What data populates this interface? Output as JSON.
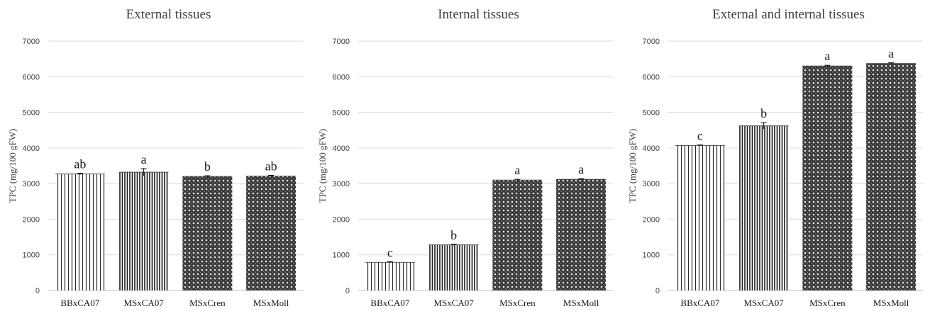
{
  "chart_data": [
    {
      "type": "bar",
      "title": "External tissues",
      "ylabel": "TPC (mg/100 gFW)",
      "xlabel": "",
      "ylim": [
        0,
        7000
      ],
      "yticks": [
        0,
        1000,
        2000,
        3000,
        4000,
        5000,
        6000,
        7000
      ],
      "grid": true,
      "categories": [
        "BBxCA07",
        "MSxCA07",
        "MSxCren",
        "MSxMoll"
      ],
      "values": [
        3270,
        3320,
        3200,
        3210
      ],
      "errors": [
        20,
        100,
        20,
        20
      ],
      "letters": [
        "ab",
        "a",
        "b",
        "ab"
      ],
      "patterns": [
        "vlines-light",
        "vlines-dense",
        "dots",
        "dots"
      ]
    },
    {
      "type": "bar",
      "title": "Internal tissues",
      "ylabel": "TPC (mg/100 gFW)",
      "xlabel": "",
      "ylim": [
        0,
        7000
      ],
      "yticks": [
        0,
        1000,
        2000,
        3000,
        4000,
        5000,
        6000,
        7000
      ],
      "grid": true,
      "categories": [
        "BBxCA07",
        "MSxCA07",
        "MSxCren",
        "MSxMoll"
      ],
      "values": [
        790,
        1280,
        3100,
        3120
      ],
      "errors": [
        15,
        15,
        20,
        20
      ],
      "letters": [
        "c",
        "b",
        "a",
        "a"
      ],
      "patterns": [
        "vlines-light",
        "vlines-dense",
        "dots",
        "dots"
      ]
    },
    {
      "type": "bar",
      "title": "External and internal tissues",
      "ylabel": "TPC (mg/100 gFW)",
      "xlabel": "",
      "ylim": [
        0,
        7000
      ],
      "yticks": [
        0,
        1000,
        2000,
        3000,
        4000,
        5000,
        6000,
        7000
      ],
      "grid": true,
      "categories": [
        "BBxCA07",
        "MSxCA07",
        "MSxCren",
        "MSxMoll"
      ],
      "values": [
        4070,
        4620,
        6300,
        6370
      ],
      "errors": [
        15,
        90,
        20,
        20
      ],
      "letters": [
        "c",
        "b",
        "a",
        "a"
      ],
      "patterns": [
        "vlines-light",
        "vlines-dense",
        "dots",
        "dots"
      ]
    }
  ]
}
